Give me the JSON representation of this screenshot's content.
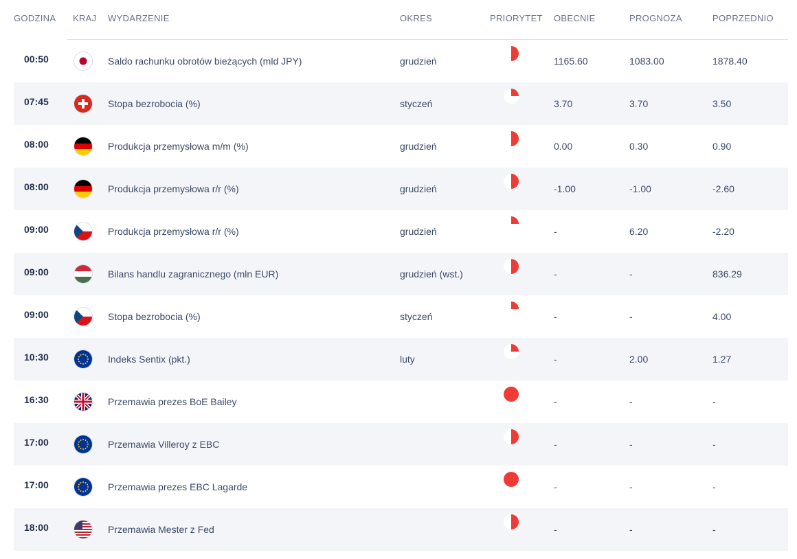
{
  "headers": {
    "time": "GODZINA",
    "country": "KRAJ",
    "event": "WYDARZENIE",
    "period": "OKRES",
    "priority": "PRIORYTET",
    "actual": "OBECNIE",
    "forecast": "PROGNOZA",
    "previous": "POPRZEDNIO"
  },
  "colors": {
    "priority": "#ef3b36",
    "priority_bg": "#ffffff"
  },
  "rows": [
    {
      "time": "00:50",
      "flag": "japan-flag-icon",
      "event": "Saldo rachunku obrotów bieżących (mld JPY)",
      "period": "grudzień",
      "priority": 0.5,
      "actual": "1165.60",
      "forecast": "1083.00",
      "previous": "1878.40"
    },
    {
      "time": "07:45",
      "flag": "switzerland-flag-icon",
      "event": "Stopa bezrobocia (%)",
      "period": "styczeń",
      "priority": 0.25,
      "actual": "3.70",
      "forecast": "3.70",
      "previous": "3.50"
    },
    {
      "time": "08:00",
      "flag": "germany-flag-icon",
      "event": "Produkcja przemysłowa m/m (%)",
      "period": "grudzień",
      "priority": 0.5,
      "actual": "0.00",
      "forecast": "0.30",
      "previous": "0.90"
    },
    {
      "time": "08:00",
      "flag": "germany-flag-icon",
      "event": "Produkcja przemysłowa r/r (%)",
      "period": "grudzień",
      "priority": 0.5,
      "actual": "-1.00",
      "forecast": "-1.00",
      "previous": "-2.60"
    },
    {
      "time": "09:00",
      "flag": "czech-republic-flag-icon",
      "event": "Produkcja przemysłowa r/r (%)",
      "period": "grudzień",
      "priority": 0.25,
      "actual": "-",
      "forecast": "6.20",
      "previous": "-2.20"
    },
    {
      "time": "09:00",
      "flag": "hungary-flag-icon",
      "event": "Bilans handlu zagranicznego (mln EUR)",
      "period": "grudzień (wst.)",
      "priority": 0.5,
      "actual": "-",
      "forecast": "-",
      "previous": "836.29"
    },
    {
      "time": "09:00",
      "flag": "czech-republic-flag-icon",
      "event": "Stopa bezrobocia (%)",
      "period": "styczeń",
      "priority": 0.25,
      "actual": "-",
      "forecast": "-",
      "previous": "4.00"
    },
    {
      "time": "10:30",
      "flag": "european-union-flag-icon",
      "event": "Indeks Sentix (pkt.)",
      "period": "luty",
      "priority": 0.25,
      "actual": "-",
      "forecast": "2.00",
      "previous": "1.27"
    },
    {
      "time": "16:30",
      "flag": "united-kingdom-flag-icon",
      "event": "Przemawia prezes BoE Bailey",
      "period": "",
      "priority": 1,
      "actual": "-",
      "forecast": "-",
      "previous": "-"
    },
    {
      "time": "17:00",
      "flag": "european-union-flag-icon",
      "event": "Przemawia Villeroy z EBC",
      "period": "",
      "priority": 0.5,
      "actual": "-",
      "forecast": "-",
      "previous": "-"
    },
    {
      "time": "17:00",
      "flag": "european-union-flag-icon",
      "event": "Przemawia prezes EBC Lagarde",
      "period": "",
      "priority": 1,
      "actual": "-",
      "forecast": "-",
      "previous": "-"
    },
    {
      "time": "18:00",
      "flag": "united-states-flag-icon",
      "event": "Przemawia Mester z Fed",
      "period": "",
      "priority": 0.5,
      "actual": "-",
      "forecast": "-",
      "previous": "-"
    }
  ]
}
